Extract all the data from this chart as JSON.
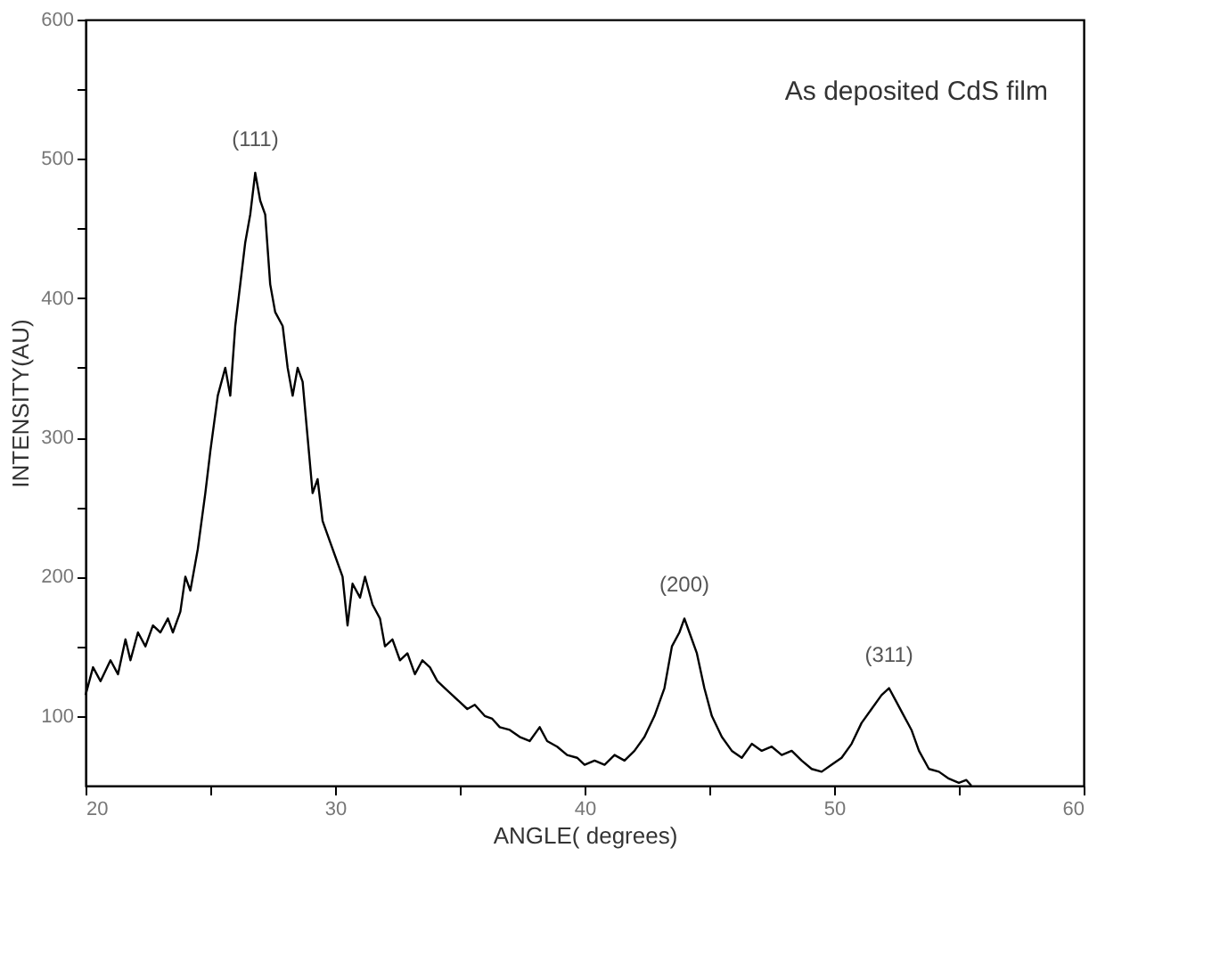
{
  "chart_data": {
    "type": "line",
    "xlabel": "ANGLE( degrees)",
    "ylabel": "INTENSITY(AU)",
    "xlim": [
      20,
      60
    ],
    "ylim": [
      50,
      600
    ],
    "xticks": [
      20,
      {
        "value": 25,
        "label": null
      },
      30,
      {
        "value": 35,
        "label": null
      },
      40,
      {
        "value": 45,
        "label": null
      },
      50,
      {
        "value": 55,
        "label": null
      },
      60
    ],
    "yticks": [
      100,
      {
        "value": 150,
        "label": null
      },
      200,
      {
        "value": 250,
        "label": null
      },
      300,
      {
        "value": 350,
        "label": null
      },
      400,
      {
        "value": 450,
        "label": null
      },
      500,
      {
        "value": 550,
        "label": null
      },
      600
    ],
    "grid": false,
    "marker": "none",
    "line_style": "solid",
    "annotations": [
      "As deposited CdS film",
      {
        "text": "(111)",
        "x": 26.8,
        "y": 490
      },
      {
        "text": "(200)",
        "x": 44.0,
        "y": 170
      },
      {
        "text": "(311)",
        "x": 52.2,
        "y": 120
      }
    ],
    "series": [
      {
        "color": "#000000",
        "x": [
          20.0,
          20.3,
          20.6,
          21.0,
          21.3,
          21.6,
          21.8,
          22.1,
          22.4,
          22.7,
          23.0,
          23.3,
          23.5,
          23.8,
          24.0,
          24.2,
          24.5,
          24.8,
          25.0,
          25.3,
          25.6,
          25.8,
          26.0,
          26.2,
          26.4,
          26.6,
          26.8,
          27.0,
          27.2,
          27.4,
          27.6,
          27.9,
          28.1,
          28.3,
          28.5,
          28.7,
          28.9,
          29.1,
          29.3,
          29.5,
          29.8,
          30.0,
          30.3,
          30.5,
          30.7,
          31.0,
          31.2,
          31.5,
          31.8,
          32.0,
          32.3,
          32.6,
          32.9,
          33.2,
          33.5,
          33.8,
          34.1,
          34.4,
          34.7,
          35.0,
          35.3,
          35.6,
          36.0,
          36.3,
          36.6,
          37.0,
          37.4,
          37.8,
          38.2,
          38.5,
          38.9,
          39.3,
          39.7,
          40.0,
          40.4,
          40.8,
          41.2,
          41.6,
          42.0,
          42.4,
          42.8,
          43.2,
          43.5,
          43.8,
          44.0,
          44.2,
          44.5,
          44.8,
          45.1,
          45.5,
          45.9,
          46.3,
          46.7,
          47.1,
          47.5,
          47.9,
          48.3,
          48.7,
          49.1,
          49.5,
          49.9,
          50.3,
          50.7,
          51.1,
          51.5,
          51.9,
          52.2,
          52.5,
          52.8,
          53.1,
          53.4,
          53.8,
          54.2,
          54.6,
          55.0,
          55.3,
          55.5
        ],
        "values": [
          115,
          135,
          125,
          140,
          130,
          155,
          140,
          160,
          150,
          165,
          160,
          170,
          160,
          175,
          200,
          190,
          220,
          260,
          290,
          330,
          350,
          330,
          380,
          410,
          440,
          460,
          490,
          470,
          460,
          410,
          390,
          380,
          350,
          330,
          350,
          340,
          300,
          260,
          270,
          240,
          225,
          215,
          200,
          165,
          195,
          185,
          200,
          180,
          170,
          150,
          155,
          140,
          145,
          130,
          140,
          135,
          125,
          120,
          115,
          110,
          105,
          108,
          100,
          98,
          92,
          90,
          85,
          82,
          92,
          82,
          78,
          72,
          70,
          65,
          68,
          65,
          72,
          68,
          75,
          85,
          100,
          120,
          150,
          160,
          170,
          160,
          145,
          120,
          100,
          85,
          75,
          70,
          80,
          75,
          78,
          72,
          75,
          68,
          62,
          60,
          65,
          70,
          80,
          95,
          105,
          115,
          120,
          110,
          100,
          90,
          75,
          62,
          60,
          55,
          52,
          54,
          50
        ]
      }
    ]
  }
}
